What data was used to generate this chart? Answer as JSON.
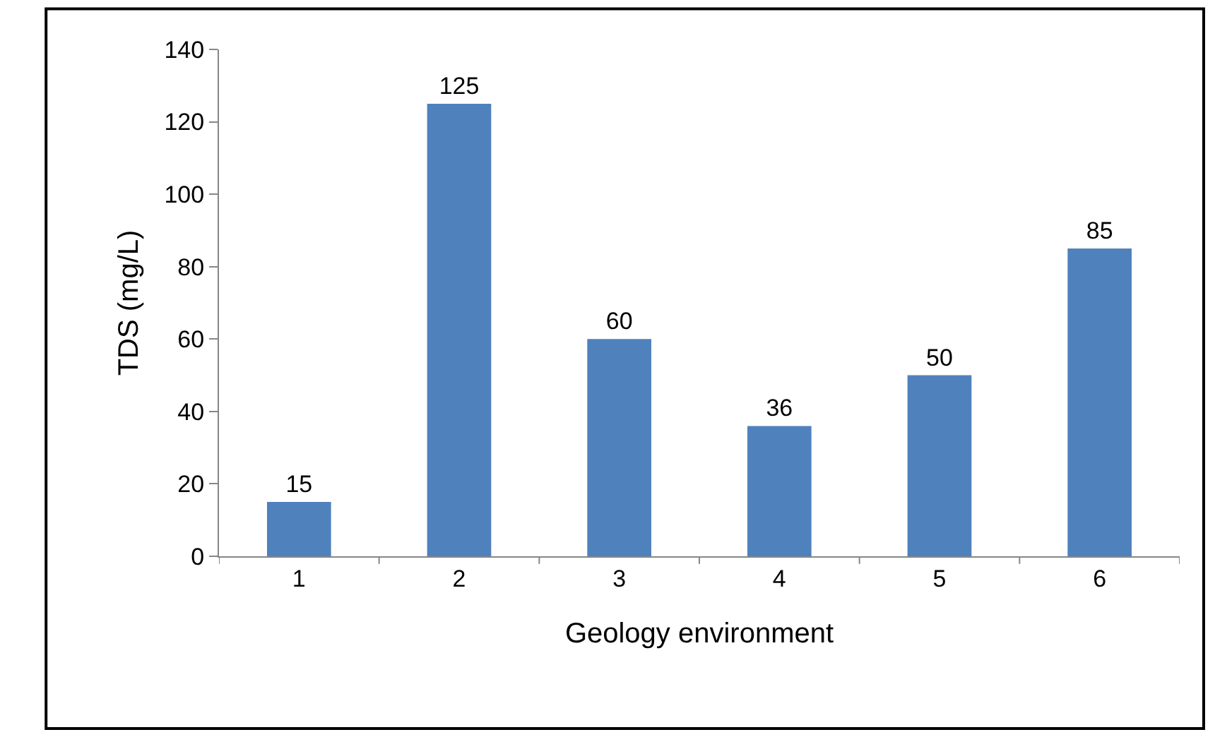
{
  "chart_data": {
    "type": "bar",
    "xlabel": "Geology environment",
    "ylabel": "TDS (mg/L)",
    "categories": [
      "1",
      "2",
      "3",
      "4",
      "5",
      "6"
    ],
    "values": [
      15,
      125,
      60,
      36,
      50,
      85
    ],
    "color": "#4f81bd",
    "ylim": [
      0,
      140
    ],
    "yticks": [
      0,
      20,
      40,
      60,
      80,
      100,
      120,
      140
    ],
    "data_labels": true
  }
}
